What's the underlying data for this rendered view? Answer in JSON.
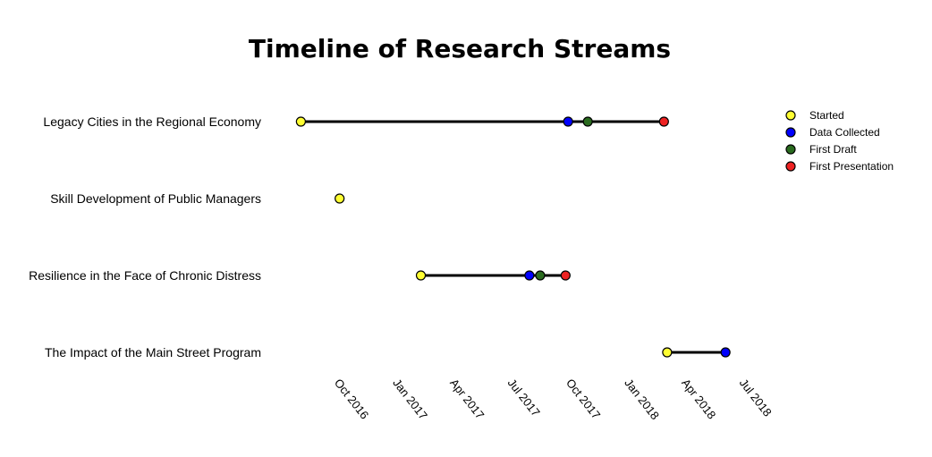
{
  "chart_data": {
    "type": "scatter",
    "title": "Timeline of Research Streams",
    "xlabel": "",
    "ylabel": "",
    "x_axis": {
      "type": "date",
      "range": [
        "2016-08-01",
        "2018-08-15"
      ],
      "ticks": [
        {
          "date": "2016-10-01",
          "label": "Oct 2016"
        },
        {
          "date": "2017-01-01",
          "label": "Jan 2017"
        },
        {
          "date": "2017-04-01",
          "label": "Apr 2017"
        },
        {
          "date": "2017-07-01",
          "label": "Jul 2017"
        },
        {
          "date": "2017-10-01",
          "label": "Oct 2017"
        },
        {
          "date": "2018-01-01",
          "label": "Jan 2018"
        },
        {
          "date": "2018-04-01",
          "label": "Apr 2018"
        },
        {
          "date": "2018-07-01",
          "label": "Jul 2018"
        }
      ],
      "grid": false
    },
    "legend": {
      "position": "top-right",
      "entries": [
        {
          "key": "started",
          "label": "Started",
          "color": "#ffff33"
        },
        {
          "key": "data_collected",
          "label": "Data Collected",
          "color": "#0000ff"
        },
        {
          "key": "first_draft",
          "label": "First Draft",
          "color": "#2a6b1f"
        },
        {
          "key": "first_presentation",
          "label": "First Presentation",
          "color": "#ee2222"
        }
      ]
    },
    "streams": [
      {
        "name": "Legacy Cities in the Regional Economy",
        "milestones": [
          {
            "key": "started",
            "date": "2016-08-10"
          },
          {
            "key": "data_collected",
            "date": "2017-10-05"
          },
          {
            "key": "first_draft",
            "date": "2017-11-05"
          },
          {
            "key": "first_presentation",
            "date": "2018-03-05"
          }
        ]
      },
      {
        "name": "Skill Development of Public Managers",
        "milestones": [
          {
            "key": "started",
            "date": "2016-10-10"
          }
        ]
      },
      {
        "name": "Resilience in the Face of Chronic Distress",
        "milestones": [
          {
            "key": "started",
            "date": "2017-02-15"
          },
          {
            "key": "data_collected",
            "date": "2017-08-05"
          },
          {
            "key": "first_draft",
            "date": "2017-08-22"
          },
          {
            "key": "first_presentation",
            "date": "2017-10-01"
          }
        ]
      },
      {
        "name": "The Impact of the Main Street Program",
        "milestones": [
          {
            "key": "started",
            "date": "2018-03-10"
          },
          {
            "key": "data_collected",
            "date": "2018-06-10"
          }
        ]
      }
    ]
  }
}
